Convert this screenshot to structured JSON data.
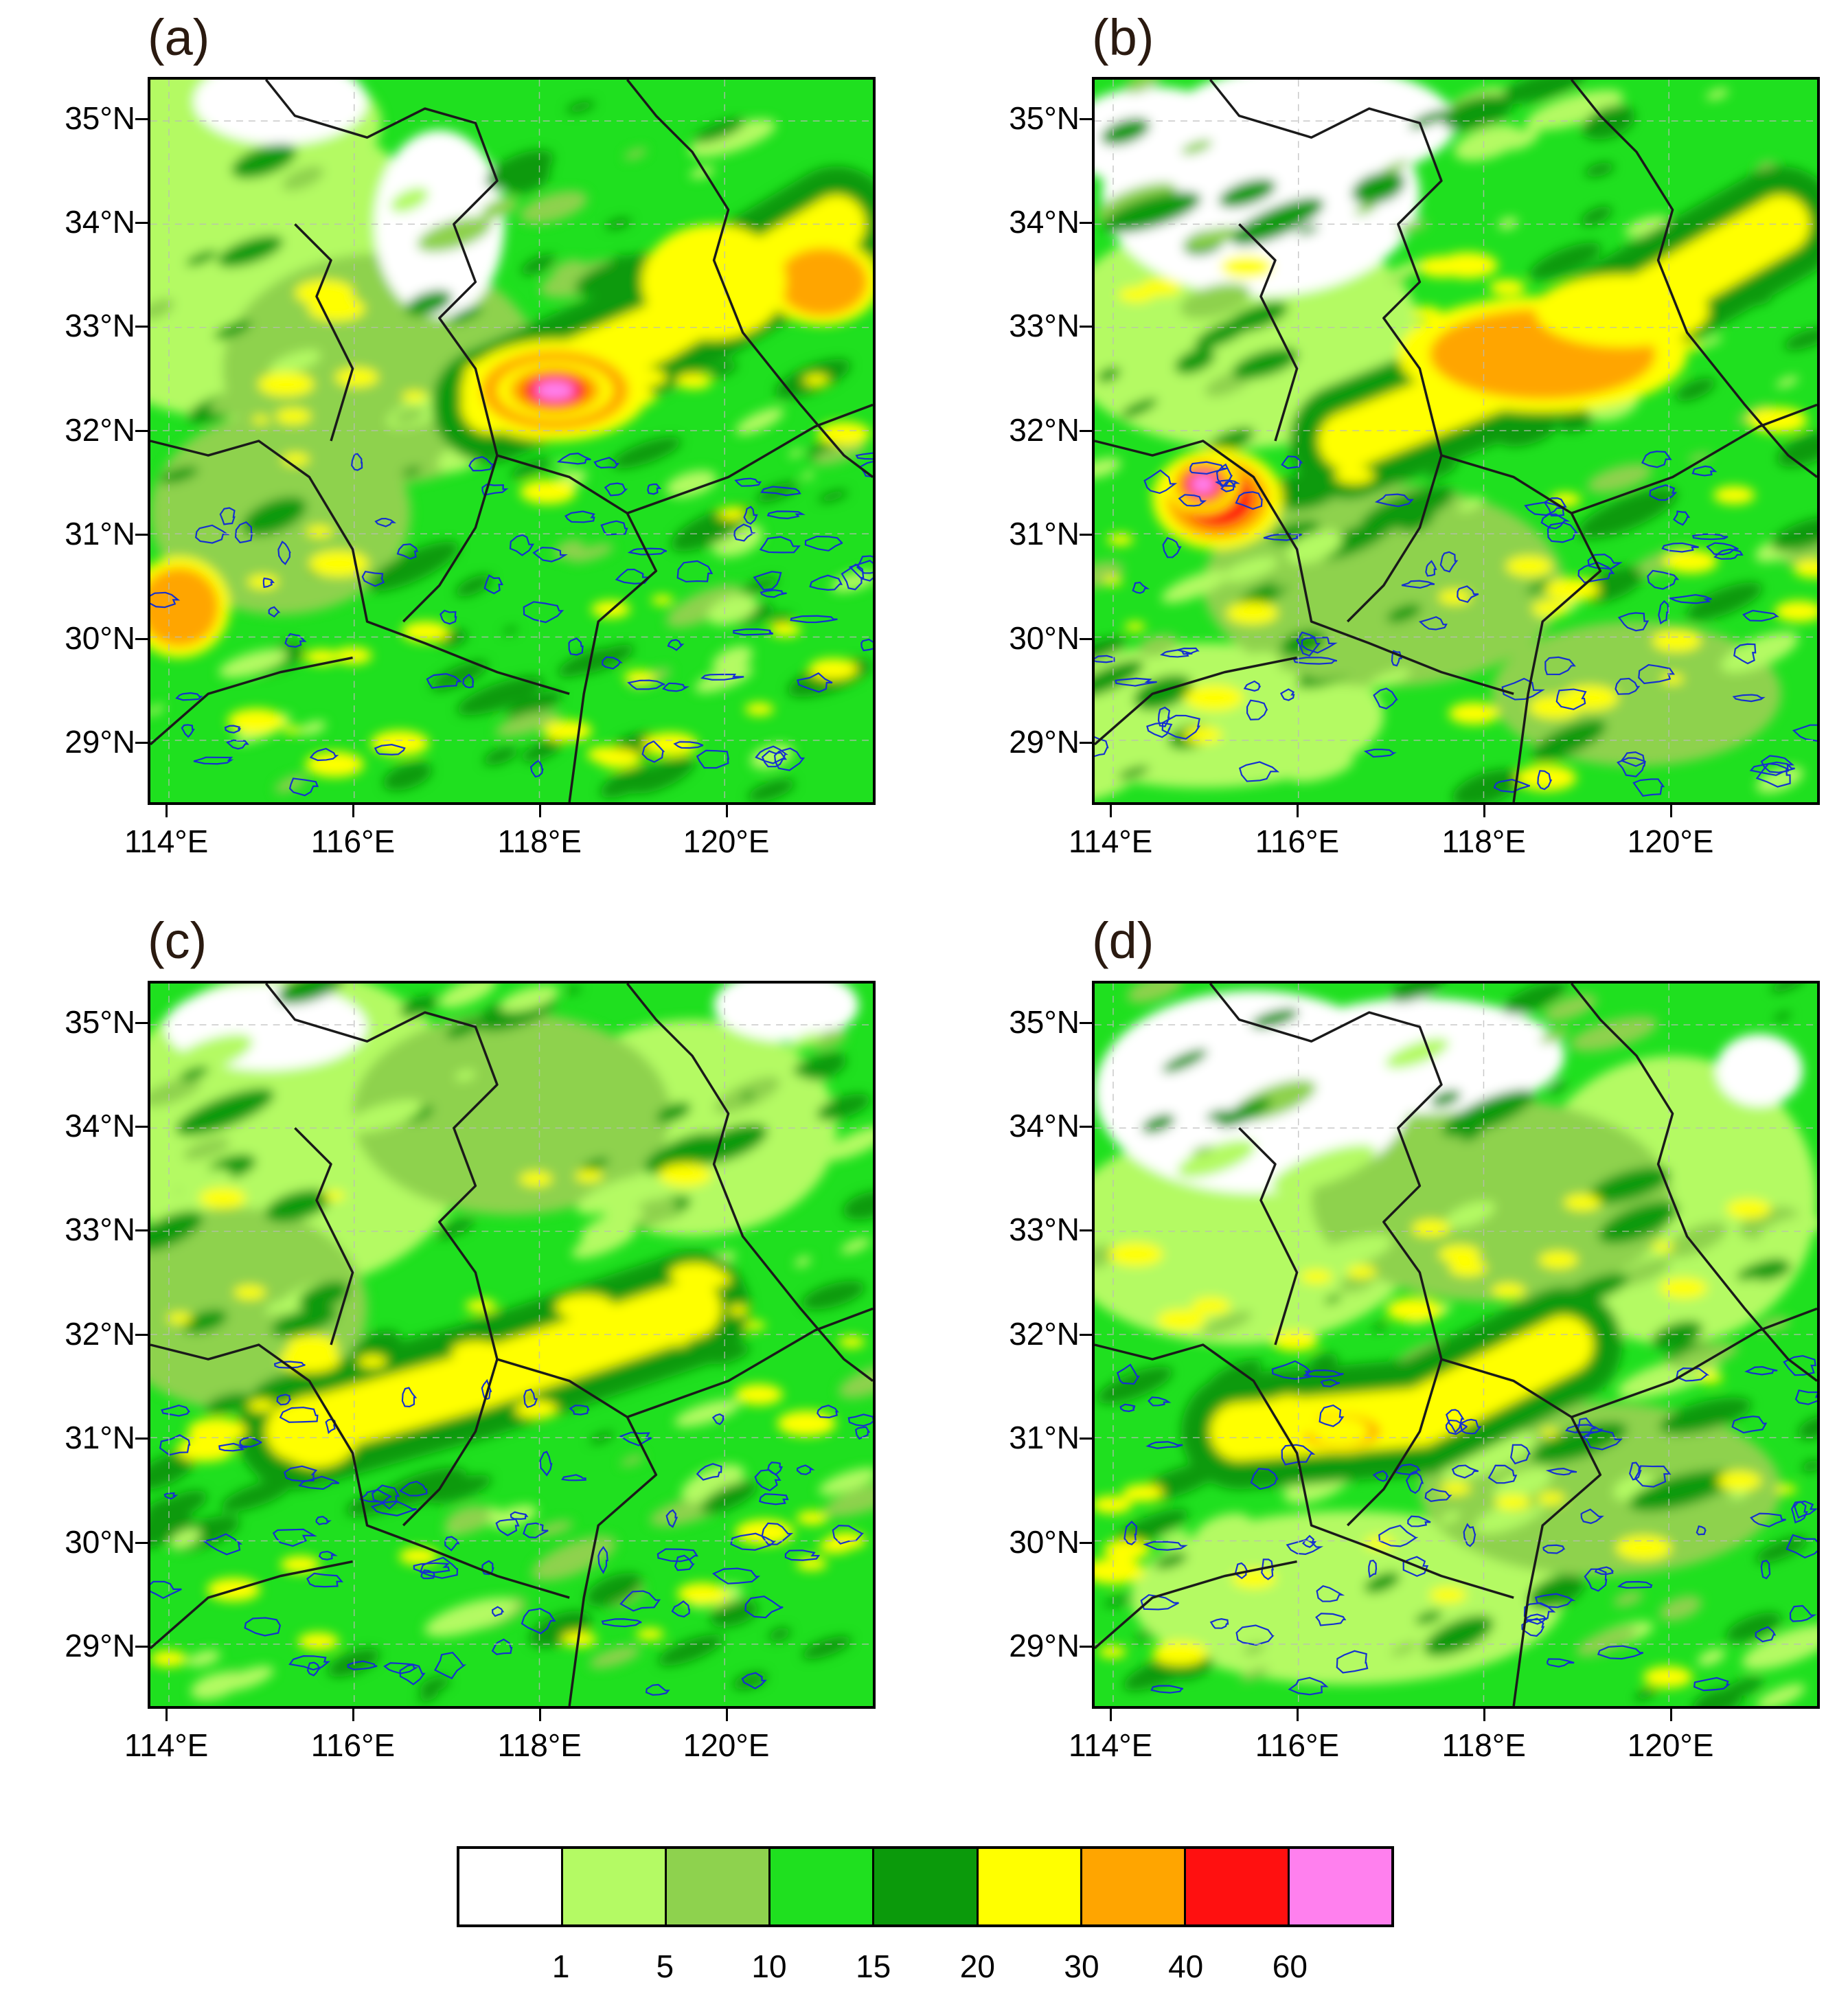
{
  "panels": [
    {
      "id": "a",
      "label": "(a)",
      "band_fills": [
        {
          "level": "15",
          "color": "#1fe01f"
        },
        {
          "level": "20",
          "color": "#0b9a0b"
        },
        {
          "level": "30",
          "color": "#ffff00"
        },
        {
          "level": "40",
          "color": "#ffa500"
        },
        {
          "level": "60",
          "color": "#ff1010"
        },
        {
          "level": ">60",
          "color": "#ff80ee"
        }
      ]
    },
    {
      "id": "b",
      "label": "(b)",
      "band_fills": [
        {
          "level": "15",
          "color": "#1fe01f"
        },
        {
          "level": "20",
          "color": "#0b9a0b"
        },
        {
          "level": "30",
          "color": "#ffff00"
        },
        {
          "level": "40",
          "color": "#ffa500"
        },
        {
          "level": "60",
          "color": "#ff1010"
        },
        {
          "level": ">60",
          "color": "#ff80ee"
        }
      ]
    },
    {
      "id": "c",
      "label": "(c)",
      "band_fills": [
        {
          "level": "15",
          "color": "#1fe01f"
        },
        {
          "level": "20",
          "color": "#0b9a0b"
        },
        {
          "level": "30",
          "color": "#ffff00"
        }
      ]
    },
    {
      "id": "d",
      "label": "(d)",
      "band_fills": [
        {
          "level": "15",
          "color": "#1fe01f"
        },
        {
          "level": "20",
          "color": "#0b9a0b"
        },
        {
          "level": "30",
          "color": "#ffff00"
        },
        {
          "level": "40",
          "color": "#ffa500"
        }
      ]
    }
  ],
  "axes": {
    "lat_labels": [
      "35°N",
      "34°N",
      "33°N",
      "32°N",
      "31°N",
      "30°N",
      "29°N"
    ],
    "lon_labels": [
      "114°E",
      "116°E",
      "118°E",
      "120°E"
    ],
    "lat_range": [
      28.4,
      35.4
    ],
    "lon_range": [
      113.8,
      121.6
    ]
  },
  "colorbar": {
    "colors": [
      "#ffffff",
      "#b4fa64",
      "#8ed24e",
      "#1fe01f",
      "#0b9a0b",
      "#ffff00",
      "#ffa500",
      "#ff1010",
      "#ff80ee"
    ],
    "labels": [
      "1",
      "5",
      "10",
      "15",
      "20",
      "30",
      "40",
      "60"
    ]
  },
  "colors": {
    "boundary": "#1a1a1a",
    "terrain_contour": "#1530d0",
    "gridline": "#bbbbbb"
  }
}
